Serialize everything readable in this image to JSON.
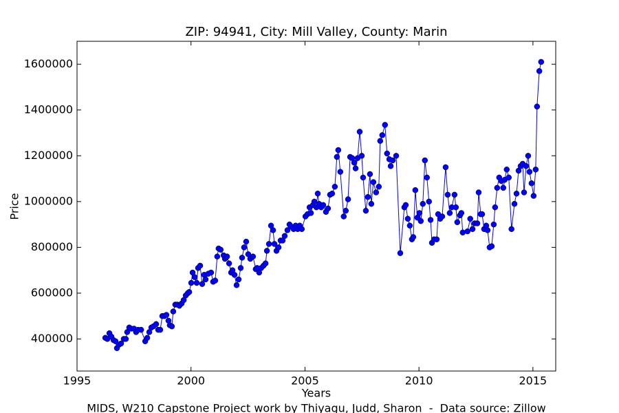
{
  "chart_data": {
    "type": "line",
    "title": "ZIP: 94941, City: Mill Valley, County: Marin",
    "xlabel": "Years",
    "ylabel": "Price",
    "footnote": "MIDS, W210 Capstone Project work by Thiyagu, Judd, Sharon  -  Data source: Zillow",
    "color": "#0000ff",
    "marker": "circle",
    "xlim": [
      1995,
      2016
    ],
    "xticks": [
      1995,
      2000,
      2005,
      2010,
      2015
    ],
    "ylim": [
      260000,
      1700000
    ],
    "yticks": [
      400000,
      600000,
      800000,
      1000000,
      1200000,
      1400000,
      1600000
    ],
    "x": [
      1996.24,
      1996.33,
      1996.42,
      1996.51,
      1996.6,
      1996.69,
      1996.75,
      1996.84,
      1996.93,
      1997.05,
      1997.14,
      1997.2,
      1997.29,
      1997.38,
      1997.5,
      1997.59,
      1997.68,
      1997.81,
      1997.99,
      1998.08,
      1998.17,
      1998.26,
      1998.35,
      1998.47,
      1998.56,
      1998.65,
      1998.74,
      1998.83,
      1998.92,
      1999.01,
      1999.07,
      1999.16,
      1999.22,
      1999.31,
      1999.4,
      1999.49,
      1999.59,
      1999.68,
      1999.77,
      1999.86,
      1999.92,
      2000.01,
      2000.07,
      2000.16,
      2000.25,
      2000.31,
      2000.4,
      2000.49,
      2000.58,
      2000.64,
      2000.76,
      2000.88,
      2000.97,
      2001.06,
      2001.15,
      2001.21,
      2001.3,
      2001.43,
      2001.49,
      2001.58,
      2001.67,
      2001.76,
      2001.82,
      2001.91,
      2002.0,
      2002.09,
      2002.18,
      2002.24,
      2002.33,
      2002.42,
      2002.51,
      2002.6,
      2002.72,
      2002.84,
      2002.9,
      2002.99,
      2003.08,
      2003.18,
      2003.27,
      2003.33,
      2003.42,
      2003.51,
      2003.6,
      2003.66,
      2003.75,
      2003.84,
      2003.93,
      2004.02,
      2004.11,
      2004.23,
      2004.32,
      2004.41,
      2004.5,
      2004.59,
      2004.68,
      2004.77,
      2004.86,
      2005.02,
      2005.11,
      2005.2,
      2005.26,
      2005.35,
      2005.41,
      2005.5,
      2005.56,
      2005.62,
      2005.71,
      2005.8,
      2005.92,
      2006.01,
      2006.1,
      2006.19,
      2006.31,
      2006.4,
      2006.46,
      2006.55,
      2006.7,
      2006.79,
      2006.89,
      2006.98,
      2007.07,
      2007.16,
      2007.22,
      2007.31,
      2007.4,
      2007.49,
      2007.55,
      2007.67,
      2007.76,
      2007.85,
      2007.91,
      2008.0,
      2008.12,
      2008.24,
      2008.3,
      2008.39,
      2008.51,
      2008.6,
      2008.7,
      2008.76,
      2008.85,
      2009.0,
      2009.18,
      2009.36,
      2009.42,
      2009.51,
      2009.6,
      2009.69,
      2009.75,
      2009.84,
      2009.93,
      2010.02,
      2010.08,
      2010.17,
      2010.26,
      2010.35,
      2010.44,
      2010.51,
      2010.57,
      2010.66,
      2010.78,
      2010.84,
      2010.93,
      2011.02,
      2011.17,
      2011.26,
      2011.35,
      2011.44,
      2011.56,
      2011.62,
      2011.68,
      2011.8,
      2011.86,
      2011.92,
      2012.13,
      2012.25,
      2012.35,
      2012.44,
      2012.56,
      2012.62,
      2012.71,
      2012.77,
      2012.86,
      2012.95,
      2013.01,
      2013.1,
      2013.19,
      2013.28,
      2013.34,
      2013.43,
      2013.52,
      2013.61,
      2013.7,
      2013.76,
      2013.85,
      2013.94,
      2014.06,
      2014.19,
      2014.28,
      2014.37,
      2014.46,
      2014.55,
      2014.61,
      2014.7,
      2014.79,
      2014.85,
      2014.94,
      2015.03,
      2015.12,
      2015.18,
      2015.28,
      2015.36
    ],
    "values": [
      405000,
      400000,
      425000,
      410000,
      395000,
      390000,
      360000,
      375000,
      380000,
      400000,
      400000,
      430000,
      450000,
      445000,
      445000,
      430000,
      440000,
      440000,
      390000,
      405000,
      430000,
      450000,
      455000,
      465000,
      440000,
      440000,
      500000,
      500000,
      505000,
      480000,
      460000,
      455000,
      520000,
      550000,
      550000,
      545000,
      555000,
      570000,
      590000,
      600000,
      605000,
      645000,
      690000,
      670000,
      645000,
      710000,
      720000,
      640000,
      680000,
      660000,
      685000,
      690000,
      650000,
      655000,
      760000,
      795000,
      790000,
      765000,
      750000,
      760000,
      730000,
      690000,
      700000,
      680000,
      635000,
      660000,
      710000,
      755000,
      800000,
      825000,
      770000,
      750000,
      760000,
      705000,
      710000,
      690000,
      710000,
      720000,
      730000,
      785000,
      815000,
      895000,
      875000,
      815000,
      785000,
      800000,
      830000,
      830000,
      850000,
      875000,
      900000,
      890000,
      880000,
      895000,
      880000,
      895000,
      880000,
      935000,
      945000,
      975000,
      950000,
      985000,
      1000000,
      975000,
      1035000,
      990000,
      975000,
      985000,
      955000,
      970000,
      1030000,
      1035000,
      1065000,
      1195000,
      1225000,
      1130000,
      935000,
      960000,
      1010000,
      1195000,
      1190000,
      1170000,
      1145000,
      1190000,
      1305000,
      1200000,
      1105000,
      960000,
      1020000,
      1120000,
      990000,
      1085000,
      1040000,
      1065000,
      1265000,
      1290000,
      1335000,
      1210000,
      1185000,
      1155000,
      1180000,
      1200000,
      775000,
      975000,
      985000,
      925000,
      895000,
      835000,
      845000,
      1050000,
      930000,
      950000,
      915000,
      990000,
      1180000,
      1105000,
      1000000,
      920000,
      820000,
      835000,
      835000,
      945000,
      925000,
      935000,
      1150000,
      1030000,
      950000,
      975000,
      1030000,
      975000,
      910000,
      940000,
      950000,
      865000,
      870000,
      925000,
      880000,
      905000,
      905000,
      1040000,
      945000,
      945000,
      880000,
      895000,
      875000,
      800000,
      805000,
      900000,
      975000,
      1060000,
      1105000,
      1090000,
      1060000,
      1095000,
      1140000,
      1105000,
      880000,
      990000,
      1035000,
      1135000,
      1155000,
      1165000,
      1040000,
      1155000,
      1200000,
      1130000,
      1080000,
      1025000,
      1140000,
      1415000,
      1570000,
      1610000
    ]
  }
}
